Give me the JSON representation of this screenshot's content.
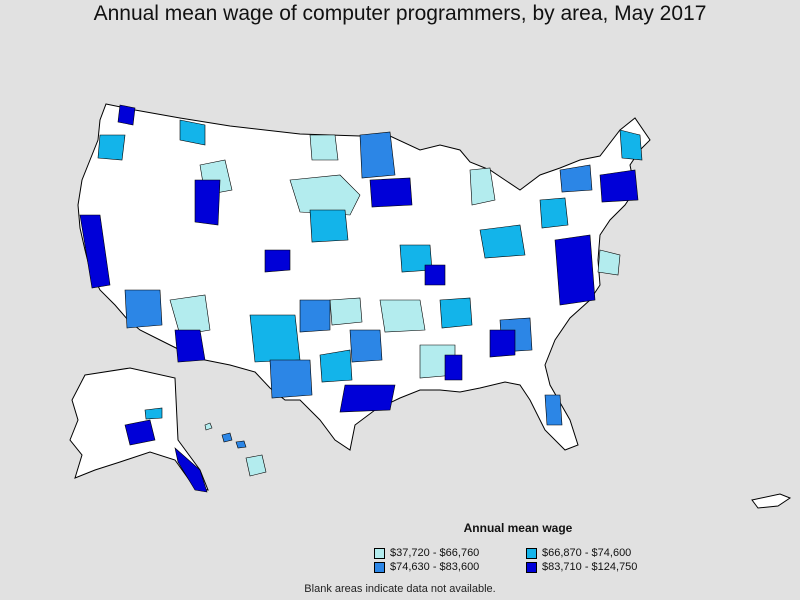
{
  "title": "Annual mean wage of computer programmers, by area, May 2017",
  "legend": {
    "title": "Annual mean wage",
    "items": [
      {
        "label": "$37,720 - $66,760",
        "color": "#b3ecee"
      },
      {
        "label": "$66,870 - $74,600",
        "color": "#13b4ea"
      },
      {
        "label": "$74,630 - $83,600",
        "color": "#2c86e6"
      },
      {
        "label": "$83,710 - $124,750",
        "color": "#0000d8"
      }
    ]
  },
  "footnote": "Blank areas indicate data not available.",
  "colors": {
    "background": "#e1e1e1",
    "no_data": "#ffffff",
    "border": "#000000"
  }
}
